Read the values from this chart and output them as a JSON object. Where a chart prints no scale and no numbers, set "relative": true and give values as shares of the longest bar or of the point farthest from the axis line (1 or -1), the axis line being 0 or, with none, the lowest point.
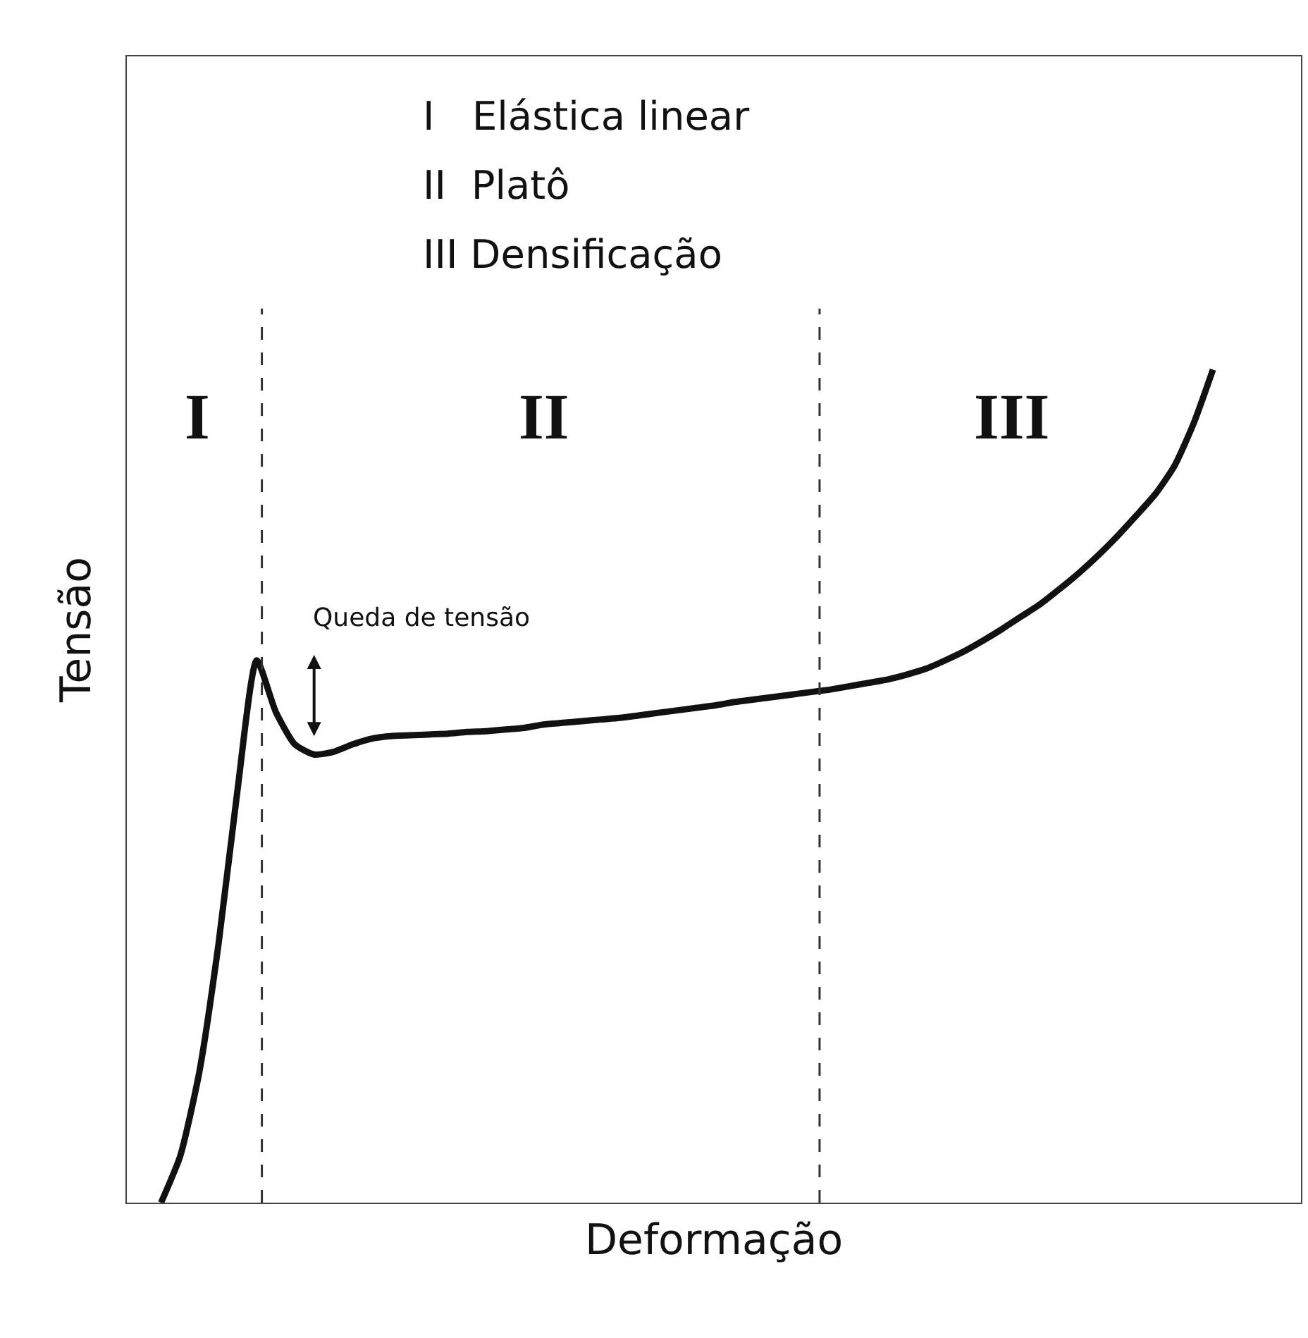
{
  "chart_data": {
    "type": "line",
    "relative": true,
    "xlabel": "Deformação",
    "ylabel": "Tensão",
    "categories": [
      null,
      null,
      null,
      null,
      null,
      null,
      null,
      null,
      null,
      null,
      null,
      null,
      null,
      null,
      null,
      null,
      null,
      null,
      null,
      null,
      null,
      null,
      null,
      null,
      null,
      null,
      null,
      null,
      null,
      null,
      null,
      null,
      null,
      null,
      null,
      null,
      null,
      null,
      null,
      null,
      null,
      null,
      null,
      null,
      null,
      null,
      null,
      null,
      null,
      null,
      null,
      null,
      null,
      null,
      null,
      null
    ],
    "series": [
      {
        "color": "#111111",
        "values": [
          0,
          0.056,
          0.157,
          0.31,
          0.496,
          0.651,
          0.589,
          0.55,
          0.538,
          0.541,
          0.55,
          0.557,
          0.56,
          0.561,
          0.562,
          0.563,
          0.565,
          0.566,
          0.568,
          0.57,
          0.574,
          0.576,
          0.578,
          0.58,
          0.582,
          0.585,
          0.588,
          0.591,
          0.594,
          0.597,
          0.601,
          0.604,
          0.607,
          0.61,
          0.613,
          0.616,
          0.62,
          0.624,
          0.628,
          0.634,
          0.641,
          0.651,
          0.662,
          0.675,
          0.689,
          0.704,
          0.719,
          0.737,
          0.756,
          0.777,
          0.8,
          0.825,
          0.851,
          0.885,
          0.936,
          1
        ]
      }
    ],
    "annotations": [
      "I   Elástica linear",
      "II  Platô",
      "III Densificação",
      "I",
      "II",
      "III",
      "Queda de tensão"
    ],
    "marker": "none",
    "line_style": "solid"
  }
}
